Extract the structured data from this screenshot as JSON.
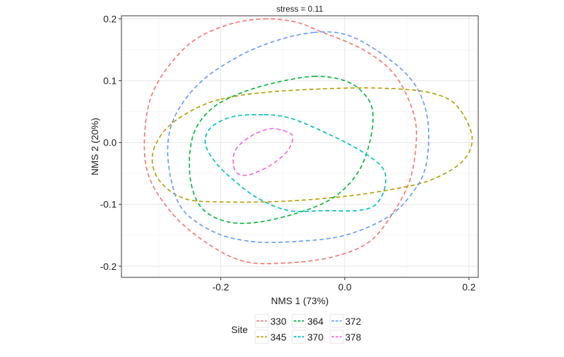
{
  "chart_data": {
    "type": "ellipse-ordination",
    "title": "stress = 0.11",
    "xlabel": "NMS 1 (73%)",
    "ylabel": "NMS 2 (20%)",
    "xlim": [
      -0.36,
      0.215
    ],
    "ylim": [
      -0.218,
      0.205
    ],
    "x_ticks": [
      -0.2,
      0.0,
      0.2
    ],
    "y_ticks": [
      -0.2,
      -0.1,
      0.0,
      0.1,
      0.2
    ],
    "x_tick_labels": [
      "-0.2",
      "0.0",
      "0.2"
    ],
    "y_tick_labels": [
      "-0.2",
      "-0.1",
      "0.0",
      "0.1",
      "0.2"
    ],
    "grid": true,
    "legend": {
      "title": "Site",
      "position": "bottom"
    },
    "series": [
      {
        "name": "330",
        "color": "#F8766D",
        "points": [
          [
            -0.13,
            0.2
          ],
          [
            -0.08,
            0.195
          ],
          [
            -0.04,
            0.18
          ],
          [
            0.03,
            0.15
          ],
          [
            0.08,
            0.11
          ],
          [
            0.11,
            0.05
          ],
          [
            0.115,
            0.0
          ],
          [
            0.105,
            -0.06
          ],
          [
            0.08,
            -0.11
          ],
          [
            0.04,
            -0.16
          ],
          [
            -0.02,
            -0.185
          ],
          [
            -0.1,
            -0.195
          ],
          [
            -0.17,
            -0.19
          ],
          [
            -0.24,
            -0.15
          ],
          [
            -0.29,
            -0.1
          ],
          [
            -0.32,
            -0.04
          ],
          [
            -0.32,
            0.04
          ],
          [
            -0.3,
            0.1
          ],
          [
            -0.25,
            0.16
          ],
          [
            -0.19,
            0.19
          ]
        ]
      },
      {
        "name": "345",
        "color": "#B79F00",
        "points": [
          [
            -0.2,
            0.07
          ],
          [
            -0.12,
            0.082
          ],
          [
            0.0,
            0.088
          ],
          [
            0.08,
            0.087
          ],
          [
            0.14,
            0.08
          ],
          [
            0.18,
            0.06
          ],
          [
            0.205,
            0.01
          ],
          [
            0.19,
            -0.03
          ],
          [
            0.14,
            -0.06
          ],
          [
            0.08,
            -0.075
          ],
          [
            0.0,
            -0.087
          ],
          [
            -0.1,
            -0.095
          ],
          [
            -0.2,
            -0.096
          ],
          [
            -0.26,
            -0.09
          ],
          [
            -0.3,
            -0.06
          ],
          [
            -0.31,
            -0.02
          ],
          [
            -0.29,
            0.02
          ],
          [
            -0.25,
            0.05
          ]
        ]
      },
      {
        "name": "364",
        "color": "#00BA38",
        "points": [
          [
            -0.05,
            0.107
          ],
          [
            0.0,
            0.1
          ],
          [
            0.03,
            0.08
          ],
          [
            0.045,
            0.05
          ],
          [
            0.04,
            0.0
          ],
          [
            0.02,
            -0.05
          ],
          [
            -0.02,
            -0.09
          ],
          [
            -0.08,
            -0.115
          ],
          [
            -0.15,
            -0.13
          ],
          [
            -0.2,
            -0.125
          ],
          [
            -0.235,
            -0.1
          ],
          [
            -0.25,
            -0.05
          ],
          [
            -0.245,
            0.01
          ],
          [
            -0.22,
            0.05
          ],
          [
            -0.18,
            0.075
          ],
          [
            -0.12,
            0.095
          ]
        ]
      },
      {
        "name": "370",
        "color": "#00BFC4",
        "points": [
          [
            -0.13,
            0.045
          ],
          [
            -0.09,
            0.04
          ],
          [
            -0.04,
            0.02
          ],
          [
            0.02,
            -0.01
          ],
          [
            0.06,
            -0.04
          ],
          [
            0.065,
            -0.07
          ],
          [
            0.05,
            -0.1
          ],
          [
            0.02,
            -0.11
          ],
          [
            -0.03,
            -0.11
          ],
          [
            -0.09,
            -0.11
          ],
          [
            -0.14,
            -0.09
          ],
          [
            -0.18,
            -0.06
          ],
          [
            -0.21,
            -0.03
          ],
          [
            -0.225,
            0.0
          ],
          [
            -0.215,
            0.025
          ],
          [
            -0.18,
            0.042
          ]
        ]
      },
      {
        "name": "372",
        "color": "#619CFF",
        "points": [
          [
            -0.05,
            0.178
          ],
          [
            0.0,
            0.175
          ],
          [
            0.05,
            0.15
          ],
          [
            0.1,
            0.11
          ],
          [
            0.125,
            0.07
          ],
          [
            0.135,
            0.02
          ],
          [
            0.13,
            -0.04
          ],
          [
            0.11,
            -0.08
          ],
          [
            0.07,
            -0.12
          ],
          [
            0.0,
            -0.15
          ],
          [
            -0.08,
            -0.16
          ],
          [
            -0.15,
            -0.16
          ],
          [
            -0.21,
            -0.145
          ],
          [
            -0.26,
            -0.11
          ],
          [
            -0.28,
            -0.06
          ],
          [
            -0.285,
            0.0
          ],
          [
            -0.27,
            0.05
          ],
          [
            -0.23,
            0.1
          ],
          [
            -0.17,
            0.14
          ],
          [
            -0.11,
            0.165
          ]
        ]
      },
      {
        "name": "378",
        "color": "#F564E3",
        "points": [
          [
            -0.11,
            0.022
          ],
          [
            -0.085,
            0.012
          ],
          [
            -0.09,
            -0.01
          ],
          [
            -0.11,
            -0.03
          ],
          [
            -0.135,
            -0.045
          ],
          [
            -0.16,
            -0.053
          ],
          [
            -0.175,
            -0.048
          ],
          [
            -0.18,
            -0.03
          ],
          [
            -0.175,
            -0.01
          ],
          [
            -0.155,
            0.008
          ],
          [
            -0.13,
            0.02
          ]
        ]
      }
    ]
  }
}
